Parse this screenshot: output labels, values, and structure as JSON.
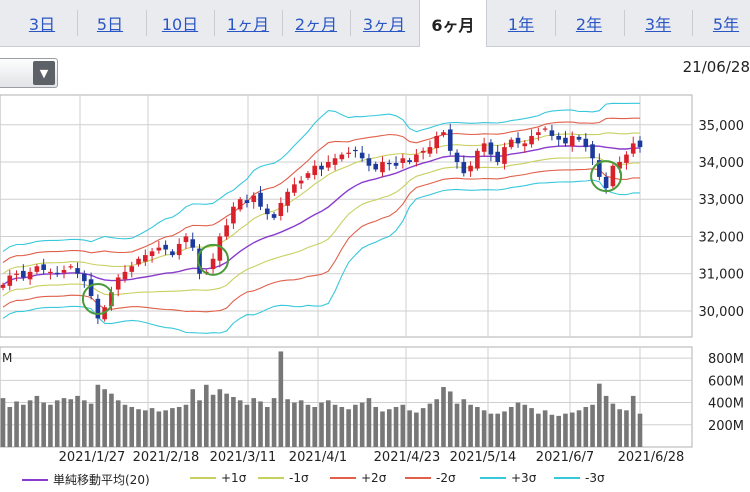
{
  "tabs": [
    {
      "label": "3日"
    },
    {
      "label": "5日"
    },
    {
      "label": "10日"
    },
    {
      "label": "1ヶ月"
    },
    {
      "label": "2ヶ月"
    },
    {
      "label": "3ヶ月"
    },
    {
      "label": "6ヶ月",
      "active": true
    },
    {
      "label": "1年"
    },
    {
      "label": "2年"
    },
    {
      "label": "3年"
    },
    {
      "label": "5年"
    }
  ],
  "date_label": "21/06/28",
  "volume_unit": "M",
  "chart_data": {
    "type": "candlestick",
    "y_ticks": [
      "35,000",
      "34,000",
      "33,000",
      "32,000",
      "31,000",
      "30,000"
    ],
    "y_tick_values": [
      35000,
      34000,
      33000,
      32000,
      31000,
      30000
    ],
    "ylim": [
      29300,
      35800
    ],
    "x_ticks": [
      "2021/1/27",
      "2021/2/18",
      "2021/3/11",
      "2021/4/1",
      "2021/4/23",
      "2021/5/14",
      "2021/6/7",
      "2021/6/28"
    ],
    "volume_ticks": [
      "800M",
      "600M",
      "400M",
      "200M"
    ],
    "volume_tick_values": [
      800,
      600,
      400,
      200
    ],
    "volume_ylim": [
      0,
      900
    ],
    "closes": [
      30700,
      30950,
      31000,
      30900,
      31050,
      31200,
      31100,
      31050,
      31000,
      31100,
      31200,
      31000,
      30800,
      30400,
      29800,
      30100,
      30500,
      30900,
      31050,
      31200,
      31400,
      31500,
      31600,
      31700,
      31650,
      31500,
      31800,
      32000,
      31700,
      31000,
      31050,
      31400,
      32000,
      32300,
      32800,
      33000,
      32900,
      33100,
      32800,
      32600,
      32500,
      32900,
      33200,
      33400,
      33500,
      33700,
      33900,
      33800,
      34000,
      34100,
      34200,
      34250,
      34300,
      34100,
      33900,
      33800,
      34000,
      33950,
      33900,
      34100,
      34000,
      34200,
      34300,
      34400,
      34700,
      34800,
      34300,
      34000,
      33700,
      33900,
      34300,
      34500,
      34200,
      34000,
      34400,
      34600,
      34500,
      34500,
      34700,
      34800,
      34900,
      34700,
      34600,
      34500,
      34700,
      34600,
      34400,
      34100,
      33600,
      33300,
      33900,
      34000,
      34200,
      34500,
      34400
    ],
    "volumes": [
      440,
      360,
      410,
      380,
      420,
      460,
      400,
      380,
      420,
      440,
      430,
      460,
      420,
      390,
      560,
      520,
      480,
      420,
      380,
      360,
      340,
      330,
      350,
      320,
      330,
      350,
      360,
      380,
      520,
      420,
      560,
      470,
      520,
      480,
      450,
      420,
      380,
      440,
      410,
      360,
      440,
      860,
      430,
      400,
      420,
      380,
      360,
      400,
      420,
      380,
      360,
      340,
      380,
      400,
      440,
      360,
      320,
      340,
      360,
      380,
      330,
      310,
      350,
      390,
      430,
      540,
      500,
      390,
      430,
      380,
      360,
      330,
      300,
      300,
      320,
      360,
      400,
      380,
      350,
      300,
      330,
      290,
      280,
      300,
      310,
      330,
      360,
      380,
      570,
      460,
      390,
      340,
      330,
      460,
      300
    ],
    "series": [
      {
        "name": "単純移動平均(20)",
        "color": "#8a3ccc"
      },
      {
        "name": "+1σ",
        "color": "#c8d060"
      },
      {
        "name": "-1σ",
        "color": "#c8d060"
      },
      {
        "name": "+2σ",
        "color": "#e0604a"
      },
      {
        "name": "-2σ",
        "color": "#e0604a"
      },
      {
        "name": "+3σ",
        "color": "#38c8dc"
      },
      {
        "name": "-3σ",
        "color": "#38c8dc"
      }
    ],
    "up_color": "#d8212a",
    "down_color": "#1c3a9c"
  }
}
